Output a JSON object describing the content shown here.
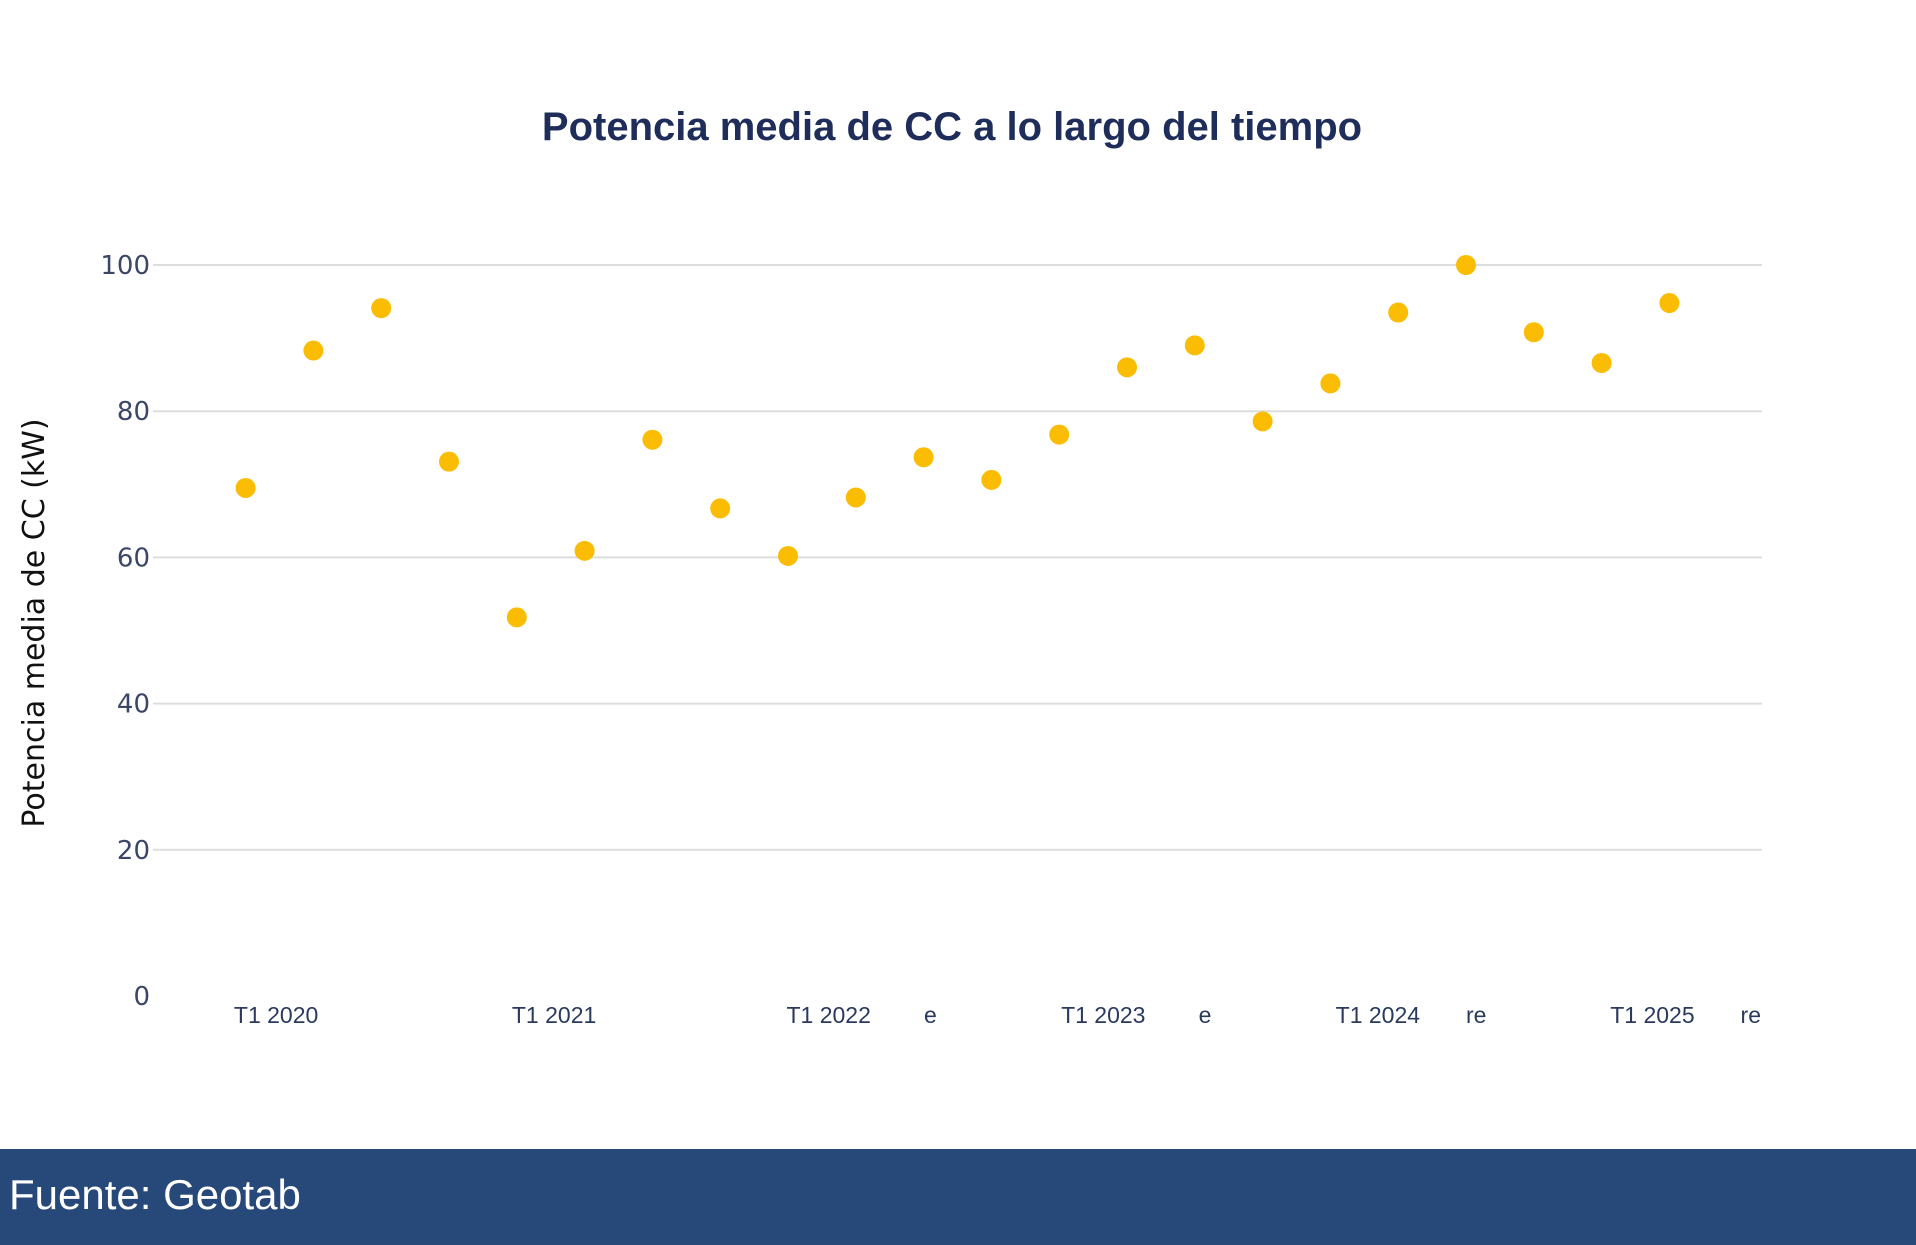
{
  "chart_data": {
    "type": "scatter",
    "title": "Potencia media de CC a lo largo del tiempo",
    "xlabel": "",
    "ylabel": "Potencia media de CC (kW)",
    "ylim": [
      0,
      100
    ],
    "yticks": [
      "0",
      "20",
      "40",
      "60",
      "80",
      "100"
    ],
    "grid": true,
    "marker_color": "#fbbc04",
    "xtick_labels": [
      {
        "label": "T1 2020",
        "pos": 0.45
      },
      {
        "label": "T1 2021",
        "pos": 4.55
      },
      {
        "label": "T1 2022",
        "pos": 8.6
      },
      {
        "label": "e",
        "pos": 10.1
      },
      {
        "label": "T1 2023",
        "pos": 12.65
      },
      {
        "label": "e",
        "pos": 14.15
      },
      {
        "label": "T1 2024",
        "pos": 16.7
      },
      {
        "label": "re",
        "pos": 18.15
      },
      {
        "label": "T1 2025",
        "pos": 20.75
      },
      {
        "label": "re",
        "pos": 22.2
      }
    ],
    "values": [
      69.5,
      88.3,
      94.1,
      73.1,
      51.8,
      60.9,
      76.1,
      66.7,
      60.2,
      68.2,
      73.7,
      70.6,
      76.8,
      86.0,
      89.0,
      78.6,
      83.8,
      93.5,
      100.0,
      90.8,
      86.6,
      94.8
    ]
  },
  "footer": {
    "source": "Fuente: Geotab"
  }
}
